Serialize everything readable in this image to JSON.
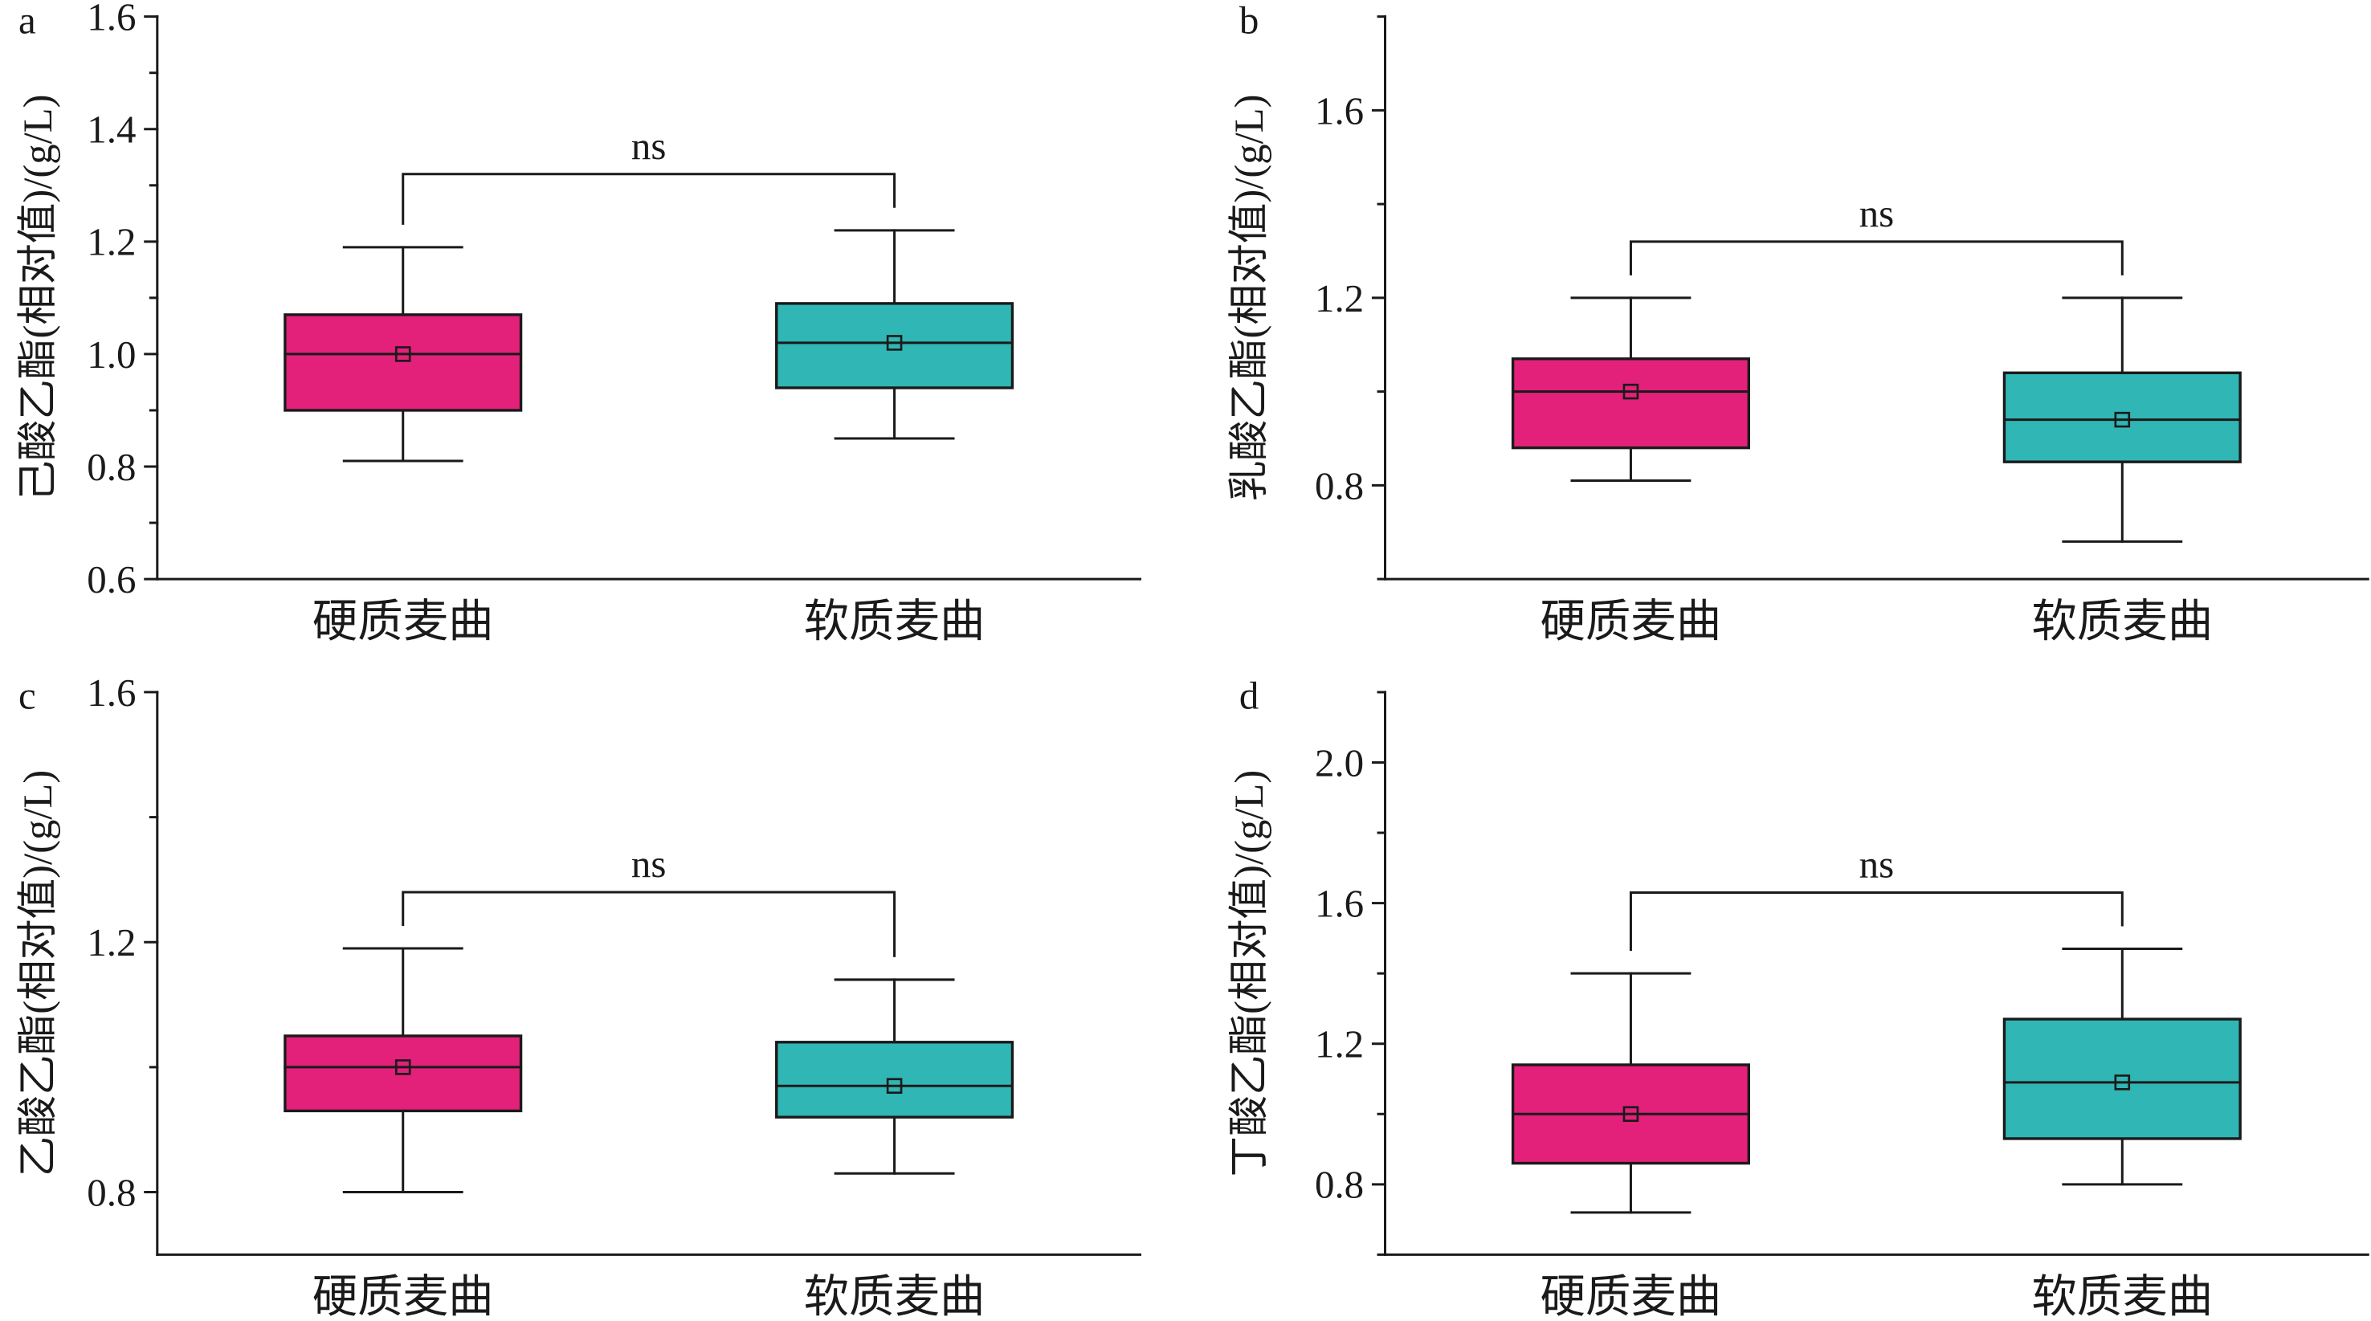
{
  "chart_data": [
    {
      "panel": "a",
      "type": "box",
      "ylabel": "己酸乙酯(相对值)/(g/L)",
      "categories": [
        "硬质麦曲",
        "软质麦曲"
      ],
      "ylim": [
        0.6,
        1.6
      ],
      "yticks": [
        "0.6",
        "0.8",
        "1.0",
        "1.2",
        "1.4",
        "1.6"
      ],
      "grid": false,
      "boxes": [
        {
          "whisker_low": 0.81,
          "q1": 0.9,
          "median": 1.0,
          "q3": 1.07,
          "whisker_high": 1.19,
          "mean": 1.0,
          "color": "#E3207A"
        },
        {
          "whisker_low": 0.85,
          "q1": 0.94,
          "median": 1.02,
          "q3": 1.09,
          "whisker_high": 1.22,
          "mean": 1.02,
          "color": "#30B6B4"
        }
      ],
      "annotations": [
        {
          "text": "ns",
          "between": [
            0,
            1
          ]
        }
      ]
    },
    {
      "panel": "b",
      "type": "box",
      "ylabel": "乳酸乙酯(相对值)/(g/L)",
      "categories": [
        "硬质麦曲",
        "软质麦曲"
      ],
      "ylim": [
        0.6,
        1.8
      ],
      "yticks": [
        "0.8",
        "1.2",
        "1.6"
      ],
      "grid": false,
      "boxes": [
        {
          "whisker_low": 0.81,
          "q1": 0.88,
          "median": 1.0,
          "q3": 1.07,
          "whisker_high": 1.2,
          "mean": 1.0,
          "color": "#E3207A"
        },
        {
          "whisker_low": 0.68,
          "q1": 0.85,
          "median": 0.94,
          "q3": 1.04,
          "whisker_high": 1.2,
          "mean": 0.94,
          "color": "#30B6B4"
        }
      ],
      "annotations": [
        {
          "text": "ns",
          "between": [
            0,
            1
          ]
        }
      ]
    },
    {
      "panel": "c",
      "type": "box",
      "ylabel": "乙酸乙酯(相对值)/(g/L)",
      "categories": [
        "硬质麦曲",
        "软质麦曲"
      ],
      "ylim": [
        0.7,
        1.6
      ],
      "yticks": [
        "0.8",
        "1.2",
        "1.6"
      ],
      "grid": false,
      "boxes": [
        {
          "whisker_low": 0.8,
          "q1": 0.93,
          "median": 1.0,
          "q3": 1.05,
          "whisker_high": 1.19,
          "mean": 1.0,
          "color": "#E3207A"
        },
        {
          "whisker_low": 0.83,
          "q1": 0.92,
          "median": 0.97,
          "q3": 1.04,
          "whisker_high": 1.14,
          "mean": 0.97,
          "color": "#30B6B4"
        }
      ],
      "annotations": [
        {
          "text": "ns",
          "between": [
            0,
            1
          ]
        }
      ]
    },
    {
      "panel": "d",
      "type": "box",
      "ylabel": "丁酸乙酯(相对值)/(g/L)",
      "categories": [
        "硬质麦曲",
        "软质麦曲"
      ],
      "ylim": [
        0.6,
        2.2
      ],
      "yticks": [
        "0.8",
        "1.2",
        "1.6",
        "2.0"
      ],
      "grid": false,
      "boxes": [
        {
          "whisker_low": 0.72,
          "q1": 0.86,
          "median": 1.0,
          "q3": 1.14,
          "whisker_high": 1.4,
          "mean": 1.0,
          "color": "#E3207A"
        },
        {
          "whisker_low": 0.8,
          "q1": 0.93,
          "median": 1.09,
          "q3": 1.27,
          "whisker_high": 1.47,
          "mean": 1.09,
          "color": "#30B6B4"
        }
      ],
      "annotations": [
        {
          "text": "ns",
          "between": [
            0,
            1
          ]
        }
      ]
    }
  ]
}
